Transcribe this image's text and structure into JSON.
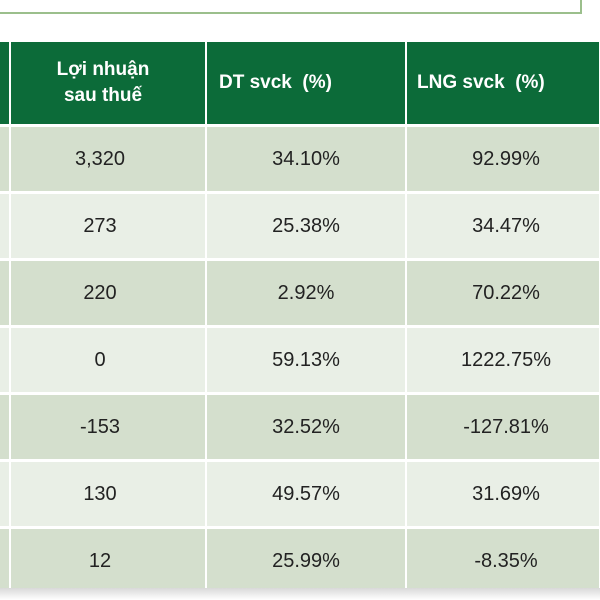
{
  "table": {
    "columns": [
      {
        "line1": "Lợi nhuận",
        "line2": "sau thuế"
      },
      {
        "line1": "DT svck  (%)",
        "line2": ""
      },
      {
        "line1": "LNG svck  (%)",
        "line2": ""
      }
    ],
    "rows": [
      [
        "3,320",
        "34.10%",
        "92.99%"
      ],
      [
        "273",
        "25.38%",
        "34.47%"
      ],
      [
        "220",
        "2.92%",
        "70.22%"
      ],
      [
        "0",
        "59.13%",
        "1222.75%"
      ],
      [
        "-153",
        "32.52%",
        "-127.81%"
      ],
      [
        "130",
        "49.57%",
        "31.69%"
      ],
      [
        "12",
        "25.99%",
        "-8.35%"
      ]
    ]
  },
  "colors": {
    "header_bg": "#0c6b39",
    "row_dark": "#d4dfcd",
    "row_light": "#e9efe6"
  }
}
